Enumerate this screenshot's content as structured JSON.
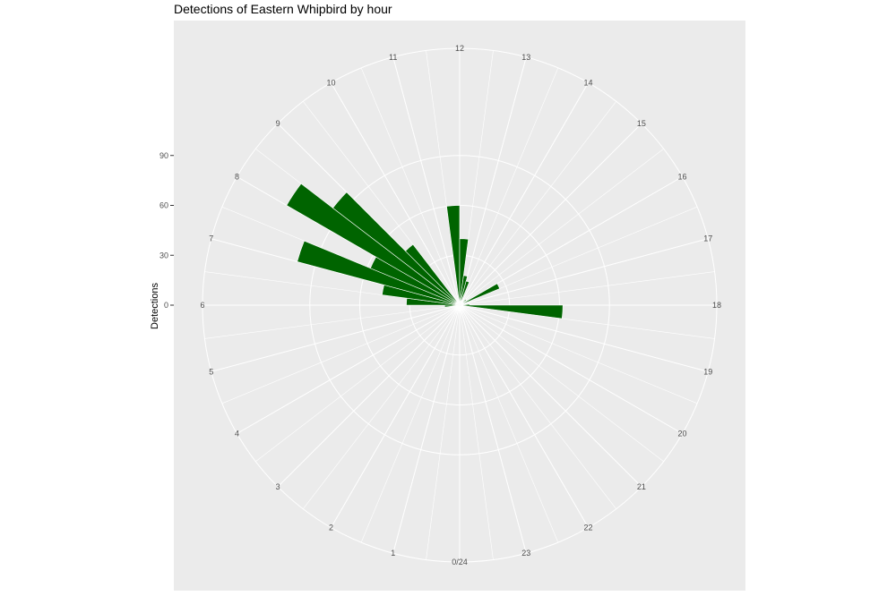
{
  "chart_data": {
    "type": "bar",
    "coord": "polar",
    "title": "Detections of Eastern Whipbird by hour",
    "xlabel": "",
    "ylabel": "Detections",
    "categories": [
      "0/24",
      "1",
      "2",
      "3",
      "4",
      "5",
      "6",
      "7",
      "8",
      "9",
      "10",
      "11",
      "12",
      "13",
      "14",
      "15",
      "16",
      "17",
      "18",
      "19",
      "20",
      "21",
      "22",
      "23"
    ],
    "values": [
      0,
      0,
      0,
      0,
      0,
      0,
      0,
      0,
      0,
      0,
      0,
      0,
      0,
      0,
      0,
      0,
      0,
      0,
      0,
      0,
      0,
      0,
      0,
      0
    ],
    "bars": [
      {
        "x": 5.75,
        "y": 9
      },
      {
        "x": 6.25,
        "y": 32
      },
      {
        "x": 6.75,
        "y": 47
      },
      {
        "x": 7.25,
        "y": 101
      },
      {
        "x": 7.75,
        "y": 58
      },
      {
        "x": 8.25,
        "y": 120
      },
      {
        "x": 8.75,
        "y": 96
      },
      {
        "x": 9.25,
        "y": 46
      },
      {
        "x": 11.75,
        "y": 60
      },
      {
        "x": 12.25,
        "y": 40
      },
      {
        "x": 12.75,
        "y": 18
      },
      {
        "x": 13.25,
        "y": 15
      },
      {
        "x": 15.25,
        "y": 5
      },
      {
        "x": 16.25,
        "y": 26
      },
      {
        "x": 17.75,
        "y": 6
      },
      {
        "x": 18.25,
        "y": 62
      }
    ],
    "y_ticks": [
      0,
      30,
      60,
      90
    ],
    "ylim": [
      0,
      120
    ],
    "grid": true,
    "bar_color": "#006400",
    "panel_color": "#ebebeb",
    "grid_color": "#ffffff"
  }
}
